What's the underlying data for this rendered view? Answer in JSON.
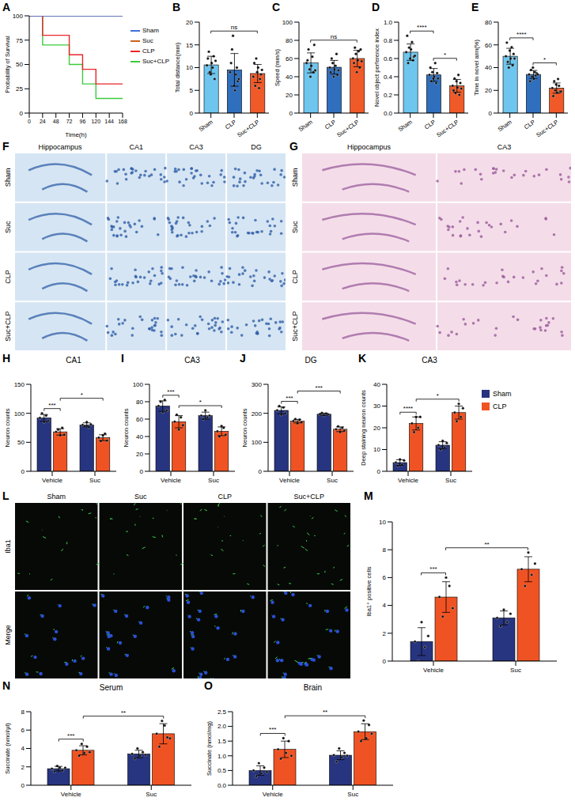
{
  "chart_data": [
    {
      "panel": "A",
      "type": "line",
      "line_style": "step",
      "x_label": "Time(h)",
      "y_label": "Probability of Survival",
      "x": [
        0,
        24,
        48,
        72,
        96,
        120,
        144,
        168
      ],
      "series": [
        {
          "name": "Sham",
          "color": "#3f6fd8",
          "values": [
            100,
            100,
            100,
            100,
            100,
            100,
            100,
            100
          ]
        },
        {
          "name": "Suc",
          "color": "#c8641e",
          "values": [
            100,
            100,
            100,
            100,
            100,
            100,
            100,
            100
          ]
        },
        {
          "name": "CLP",
          "color": "#e8262a",
          "values": [
            100,
            80,
            80,
            60,
            45,
            30,
            30,
            30
          ]
        },
        {
          "name": "Suc+CLP",
          "color": "#3ccc3c",
          "values": [
            100,
            70,
            70,
            50,
            30,
            15,
            15,
            15
          ]
        }
      ],
      "xlim": [
        0,
        168
      ],
      "xticks": [
        0,
        24,
        48,
        72,
        96,
        120,
        144,
        168
      ],
      "ylim": [
        0,
        100
      ],
      "yticks": [
        0,
        25,
        50,
        75,
        100
      ],
      "legend": "right"
    },
    {
      "panel": "B",
      "type": "bar",
      "y_label": "Total distance(mm)",
      "categories": [
        "Sham",
        "CLP",
        "Suc+CLP"
      ],
      "colors": [
        "#6ec6ee",
        "#2f6fbd",
        "#f05a28"
      ],
      "values": [
        10.6,
        9.5,
        8.7
      ],
      "errors": [
        1.9,
        3.6,
        2.0
      ],
      "points": [
        [
          10.5,
          12,
          13.5,
          9,
          8.5,
          11,
          10,
          12.5,
          7.5,
          11.5
        ],
        [
          9,
          11,
          14,
          17,
          6,
          5,
          8.5,
          10,
          7,
          7.5
        ],
        [
          8,
          11,
          6,
          12,
          9,
          10,
          5.5,
          7.5,
          8.5,
          9.5
        ]
      ],
      "ylim": [
        0,
        20
      ],
      "yticks": [
        0,
        5,
        10,
        15,
        20
      ],
      "comparisons": [
        {
          "from": "Sham",
          "to": "Suc+CLP",
          "label": "ns"
        }
      ]
    },
    {
      "panel": "C",
      "type": "bar",
      "y_label": "Speed (mm/s)",
      "categories": [
        "Sham",
        "CLP",
        "Suc+CLP"
      ],
      "colors": [
        "#6ec6ee",
        "#2f6fbd",
        "#f05a28"
      ],
      "values": [
        55.2,
        50.4,
        60
      ],
      "errors": [
        11,
        7.5,
        9
      ],
      "points": [
        [
          55,
          58,
          70,
          48,
          40,
          52,
          62,
          45,
          75,
          47
        ],
        [
          50,
          45,
          60,
          55,
          40,
          48,
          52,
          65,
          42,
          47
        ],
        [
          60,
          55,
          72,
          65,
          45,
          58,
          68,
          50,
          70,
          57
        ]
      ],
      "ylim": [
        0,
        100
      ],
      "yticks": [
        0,
        20,
        40,
        60,
        80,
        100
      ],
      "comparisons": [
        {
          "from": "Sham",
          "to": "Suc+CLP",
          "label": "ns"
        }
      ]
    },
    {
      "panel": "D",
      "type": "bar",
      "y_label": "Novel object perference index",
      "categories": [
        "Sham",
        "CLP",
        "Suc+CLP"
      ],
      "colors": [
        "#6ec6ee",
        "#2f6fbd",
        "#f05a28"
      ],
      "values": [
        0.67,
        0.42,
        0.3
      ],
      "errors": [
        0.09,
        0.07,
        0.07
      ],
      "points": [
        [
          0.67,
          0.85,
          0.55,
          0.72,
          0.6,
          0.7,
          0.78,
          0.58,
          0.62,
          0.63
        ],
        [
          0.42,
          0.5,
          0.35,
          0.45,
          0.38,
          0.4,
          0.55,
          0.33,
          0.44,
          0.38
        ],
        [
          0.3,
          0.25,
          0.38,
          0.22,
          0.35,
          0.28,
          0.42,
          0.2,
          0.33,
          0.27
        ]
      ],
      "ylim": [
        0,
        1
      ],
      "yticks": [
        {
          "value": 0,
          "label": "0.0"
        },
        0.2,
        0.4,
        0.6,
        0.8,
        {
          "value": 1,
          "label": "1.0"
        }
      ],
      "comparisons": [
        {
          "from": "Sham",
          "to": "CLP",
          "label": "****"
        },
        {
          "from": "CLP",
          "to": "Suc+CLP",
          "label": "*"
        }
      ]
    },
    {
      "panel": "E",
      "type": "bar",
      "y_label": "Time in novel arm(%)",
      "categories": [
        "Sham",
        "CLP",
        "Suc+CLP"
      ],
      "colors": [
        "#6ec6ee",
        "#2f6fbd",
        "#f05a28"
      ],
      "values": [
        50,
        34,
        22
      ],
      "errors": [
        7,
        3.5,
        4.5
      ],
      "points": [
        [
          50,
          62,
          45,
          40,
          55,
          48,
          58,
          42,
          52,
          48
        ],
        [
          34,
          28,
          38,
          32,
          40,
          30,
          36,
          33,
          35,
          34
        ],
        [
          22,
          15,
          28,
          20,
          25,
          18,
          30,
          24,
          19,
          19
        ]
      ],
      "ylim": [
        0,
        80
      ],
      "yticks": [
        0,
        20,
        40,
        60,
        80
      ],
      "comparisons": [
        {
          "from": "Sham",
          "to": "CLP",
          "label": "****"
        },
        {
          "from": "CLP",
          "to": "Suc+CLP",
          "label": "*"
        }
      ]
    },
    {
      "panel": "H",
      "type": "bar",
      "title": "CA1",
      "y_label": "Neuron counts",
      "categories": [
        "Vehicle",
        "Suc"
      ],
      "series": [
        {
          "name": "Sham",
          "color": "#27347f",
          "values": [
            92,
            80
          ],
          "errors": [
            6,
            3.5
          ],
          "points": [
            [
              92,
              100,
              85,
              96,
              87
            ],
            [
              80,
              78,
              85,
              76,
              81
            ]
          ]
        },
        {
          "name": "CLP",
          "color": "#f05323",
          "values": [
            68,
            58
          ],
          "errors": [
            5.5,
            5
          ],
          "points": [
            [
              68,
              72,
              62,
              75,
              63
            ],
            [
              58,
              52,
              62,
              65,
              53
            ]
          ]
        }
      ],
      "ylim": [
        0,
        150
      ],
      "yticks": [
        0,
        50,
        100,
        150
      ],
      "comparisons": [
        {
          "from": [
            "Vehicle",
            "Sham"
          ],
          "to": [
            "Vehicle",
            "CLP"
          ],
          "label": "***"
        },
        {
          "from": [
            "Vehicle",
            "CLP"
          ],
          "to": [
            "Suc",
            "CLP"
          ],
          "label": "*"
        }
      ]
    },
    {
      "panel": "I",
      "type": "bar",
      "title": "CA3",
      "y_label": "Neuron counts",
      "categories": [
        "Vehicle",
        "Suc"
      ],
      "series": [
        {
          "name": "Sham",
          "color": "#27347f",
          "values": [
            75,
            64
          ],
          "errors": [
            6,
            4
          ],
          "points": [
            [
              75,
              80,
              68,
              82,
              70
            ],
            [
              64,
              60,
              70,
              62,
              64
            ]
          ]
        },
        {
          "name": "CLP",
          "color": "#f05323",
          "values": [
            57,
            46
          ],
          "errors": [
            7,
            5
          ],
          "points": [
            [
              57,
              65,
              48,
              62,
              53
            ],
            [
              46,
              40,
              52,
              50,
              42
            ]
          ]
        }
      ],
      "ylim": [
        0,
        100
      ],
      "yticks": [
        0,
        20,
        40,
        60,
        80,
        100
      ],
      "comparisons": [
        {
          "from": [
            "Vehicle",
            "Sham"
          ],
          "to": [
            "Vehicle",
            "CLP"
          ],
          "label": "***"
        },
        {
          "from": [
            "Vehicle",
            "CLP"
          ],
          "to": [
            "Suc",
            "CLP"
          ],
          "label": "*"
        }
      ]
    },
    {
      "panel": "J",
      "type": "bar",
      "title": "DG",
      "y_label": "Neuron counts",
      "categories": [
        "Vehicle",
        "Suc"
      ],
      "series": [
        {
          "name": "Sham",
          "color": "#27347f",
          "values": [
            210,
            197
          ],
          "errors": [
            12,
            3.5
          ],
          "points": [
            [
              210,
              225,
              195,
              220,
              200
            ],
            [
              197,
              201,
              192,
              199,
              196
            ]
          ]
        },
        {
          "name": "CLP",
          "color": "#f05323",
          "values": [
            173,
            145
          ],
          "errors": [
            6,
            8
          ],
          "points": [
            [
              173,
              180,
              165,
              178,
              169
            ],
            [
              145,
              155,
              135,
              150,
              140
            ]
          ]
        }
      ],
      "ylim": [
        0,
        300
      ],
      "yticks": [
        0,
        100,
        200,
        300
      ],
      "comparisons": [
        {
          "from": [
            "Vehicle",
            "Sham"
          ],
          "to": [
            "Vehicle",
            "CLP"
          ],
          "label": "***"
        },
        {
          "from": [
            "Vehicle",
            "CLP"
          ],
          "to": [
            "Suc",
            "CLP"
          ],
          "label": "***"
        }
      ]
    },
    {
      "panel": "K",
      "type": "bar",
      "title": "CA3",
      "y_label": "Deep staining neuron counts",
      "categories": [
        "Vehicle",
        "Suc"
      ],
      "series": [
        {
          "name": "Sham",
          "color": "#27347f",
          "values": [
            4,
            12
          ],
          "errors": [
            1.3,
            1.6
          ],
          "points": [
            [
              4,
              2.5,
              5.5,
              3,
              5
            ],
            [
              12,
              10,
              14,
              11,
              13
            ]
          ]
        },
        {
          "name": "CLP",
          "color": "#f05323",
          "values": [
            22,
            27
          ],
          "errors": [
            3,
            3
          ],
          "points": [
            [
              22,
              18,
              25,
              20,
              25
            ],
            [
              27,
              23,
              31,
              25,
              29
            ]
          ]
        }
      ],
      "ylim": [
        0,
        40
      ],
      "yticks": [
        0,
        10,
        20,
        30,
        40
      ],
      "comparisons": [
        {
          "from": [
            "Vehicle",
            "Sham"
          ],
          "to": [
            "Vehicle",
            "CLP"
          ],
          "label": "****"
        },
        {
          "from": [
            "Vehicle",
            "CLP"
          ],
          "to": [
            "Suc",
            "CLP"
          ],
          "label": "*"
        }
      ],
      "legend": "right"
    },
    {
      "panel": "M",
      "type": "bar",
      "y_label": "Iba1⁺ positive cells",
      "categories": [
        "Vehicle",
        "Suc"
      ],
      "series": [
        {
          "name": "Sham",
          "color": "#27347f",
          "values": [
            1.4,
            3.1
          ],
          "errors": [
            1.0,
            0.5
          ],
          "points": [
            [
              1.4,
              0,
              2.8,
              1,
              1.8
            ],
            [
              3.1,
              2.5,
              3.7,
              2.8,
              3.4
            ]
          ]
        },
        {
          "name": "CLP",
          "color": "#f05323",
          "values": [
            4.6,
            6.6
          ],
          "errors": [
            1.1,
            0.9
          ],
          "points": [
            [
              4.6,
              3.2,
              6,
              5.4,
              3.8
            ],
            [
              6.6,
              5.4,
              7.8,
              6.2,
              7
            ]
          ]
        }
      ],
      "ylim": [
        0,
        10
      ],
      "yticks": [
        0,
        2,
        4,
        6,
        8,
        10
      ],
      "comparisons": [
        {
          "from": [
            "Vehicle",
            "Sham"
          ],
          "to": [
            "Vehicle",
            "CLP"
          ],
          "label": "***"
        },
        {
          "from": [
            "Vehicle",
            "CLP"
          ],
          "to": [
            "Suc",
            "CLP"
          ],
          "label": "**"
        }
      ]
    },
    {
      "panel": "N",
      "type": "bar",
      "title": "Serum",
      "y_label": "Succinate (nmol/μl)",
      "categories": [
        "Vehicle",
        "Suc"
      ],
      "series": [
        {
          "name": "Sham",
          "color": "#27347f",
          "values": [
            1.8,
            3.4
          ],
          "errors": [
            0.25,
            0.4
          ],
          "points": [
            [
              1.8,
              1.5,
              2.1,
              1.9,
              1.6,
              1.9
            ],
            [
              3.4,
              2.9,
              4,
              3.2,
              3.6,
              3.3
            ]
          ]
        },
        {
          "name": "CLP",
          "color": "#f05323",
          "values": [
            3.8,
            5.6
          ],
          "errors": [
            0.5,
            1.1
          ],
          "points": [
            [
              3.8,
              3.2,
              4.5,
              3.5,
              4.2,
              3.6
            ],
            [
              5.6,
              4.2,
              7,
              6.5,
              5.2,
              5.1
            ]
          ]
        }
      ],
      "ylim": [
        0,
        8
      ],
      "yticks": [
        0,
        2,
        4,
        6,
        8
      ],
      "comparisons": [
        {
          "from": [
            "Vehicle",
            "Sham"
          ],
          "to": [
            "Vehicle",
            "CLP"
          ],
          "label": "***"
        },
        {
          "from": [
            "Vehicle",
            "CLP"
          ],
          "to": [
            "Suc",
            "CLP"
          ],
          "label": "**"
        }
      ]
    },
    {
      "panel": "O",
      "type": "bar",
      "title": "Brain",
      "y_label": "Succinate (nmol/mg)",
      "categories": [
        "Vehicle",
        "Suc"
      ],
      "series": [
        {
          "name": "Sham",
          "color": "#27347f",
          "values": [
            0.5,
            1.02
          ],
          "errors": [
            0.16,
            0.15
          ],
          "points": [
            [
              0.5,
              0.3,
              0.75,
              0.4,
              0.6,
              0.45
            ],
            [
              1.02,
              0.8,
              1.25,
              0.95,
              1.1,
              1.0
            ]
          ]
        },
        {
          "name": "CLP",
          "color": "#f05323",
          "values": [
            1.22,
            1.82
          ],
          "errors": [
            0.28,
            0.27
          ],
          "points": [
            [
              1.22,
              0.9,
              1.6,
              1.1,
              1.5,
              1.0
            ],
            [
              1.82,
              1.5,
              2.2,
              1.6,
              2.05,
              1.75
            ]
          ]
        }
      ],
      "ylim": [
        0,
        2.5
      ],
      "yticks": [
        {
          "value": 0,
          "label": "0.0"
        },
        0.5,
        {
          "value": 1,
          "label": "1.0"
        },
        1.5,
        {
          "value": 2,
          "label": "2.0"
        },
        2.5
      ],
      "comparisons": [
        {
          "from": [
            "Vehicle",
            "Sham"
          ],
          "to": [
            "Vehicle",
            "CLP"
          ],
          "label": "***"
        },
        {
          "from": [
            "Vehicle",
            "CLP"
          ],
          "to": [
            "Suc",
            "CLP"
          ],
          "label": "**"
        }
      ]
    }
  ],
  "image_panels": [
    {
      "panel": "F",
      "columns": [
        "Hippocampus",
        "CA1",
        "CA3",
        "DG"
      ],
      "rows": [
        "Sham",
        "Suc",
        "CLP",
        "Suc+CLP"
      ],
      "colors": [
        "#d6e5f3",
        "#2f5fa8"
      ]
    },
    {
      "panel": "G",
      "columns": [
        "Hippocampus",
        "CA3"
      ],
      "rows": [
        "Sham",
        "Suc",
        "CLP",
        "Suc+CLP"
      ],
      "colors": [
        "#f4dde9",
        "#9a5b9c"
      ]
    },
    {
      "panel": "L",
      "columns": [
        "Sham",
        "Suc",
        "CLP",
        "Suc+CLP"
      ],
      "rows": [
        "Iba1",
        "Merge"
      ],
      "colors": [
        "#060906",
        "#3ad14b"
      ]
    }
  ]
}
